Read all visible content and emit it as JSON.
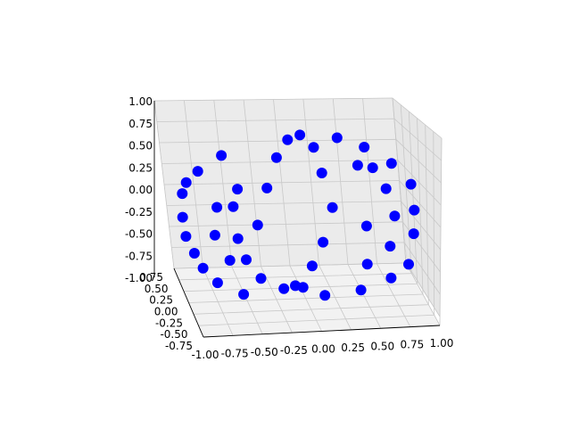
{
  "chart_data": {
    "type": "scatter",
    "projection": "3d",
    "title": "",
    "xlabel": "",
    "ylabel": "",
    "zlabel": "",
    "xlim": [
      -1.0,
      1.0
    ],
    "ylim": [
      -0.75,
      0.75
    ],
    "zlim": [
      -1.0,
      1.0
    ],
    "grid": true,
    "x_ticks": [
      "-1.00",
      "-0.75",
      "-0.50",
      "-0.25",
      "0.00",
      "0.25",
      "0.50",
      "0.75",
      "1.00"
    ],
    "y_ticks": [
      "-0.75",
      "-0.50",
      "-0.25",
      "0.00",
      "0.25",
      "0.50",
      "0.75"
    ],
    "z_ticks": [
      "-1.00",
      "-0.75",
      "-0.50",
      "-0.25",
      "0.00",
      "0.25",
      "0.50",
      "0.75",
      "1.00"
    ],
    "series": [
      {
        "color": "#0000ff",
        "marker": "o",
        "description_of_shape": "points on banded curves of a sphere of radius 1",
        "points": [
          [
            -0.96,
            -0.1,
            0.05
          ],
          [
            -0.94,
            -0.15,
            0.35
          ],
          [
            -0.9,
            -0.2,
            0.5
          ],
          [
            -0.8,
            -0.25,
            0.65
          ],
          [
            -0.6,
            -0.25,
            0.82
          ],
          [
            -0.95,
            -0.05,
            -0.2
          ],
          [
            -0.9,
            -0.05,
            -0.4
          ],
          [
            -0.85,
            -0.1,
            -0.55
          ],
          [
            -0.75,
            -0.15,
            -0.7
          ],
          [
            -0.55,
            -0.2,
            -0.82
          ],
          [
            -0.65,
            0.1,
            0.05
          ],
          [
            -0.7,
            0.05,
            -0.25
          ],
          [
            -0.6,
            0.05,
            -0.55
          ],
          [
            -0.35,
            0.1,
            -0.8
          ],
          [
            -0.15,
            0.2,
            -0.98
          ],
          [
            -0.05,
            0.2,
            -0.95
          ],
          [
            -0.35,
            -0.05,
            -0.1
          ],
          [
            -0.25,
            -0.1,
            0.35
          ],
          [
            -0.15,
            -0.1,
            0.7
          ],
          [
            -0.05,
            -0.1,
            0.9
          ],
          [
            0.05,
            -0.1,
            0.95
          ],
          [
            0.15,
            -0.1,
            0.8
          ],
          [
            0.2,
            -0.1,
            0.5
          ],
          [
            0.3,
            0.1,
            0.0
          ],
          [
            0.2,
            0.1,
            -0.4
          ],
          [
            0.1,
            0.15,
            -0.7
          ],
          [
            0.0,
            0.1,
            -0.92
          ],
          [
            0.15,
            -0.1,
            -0.92
          ],
          [
            0.45,
            -0.15,
            -0.85
          ],
          [
            0.7,
            -0.2,
            -0.7
          ],
          [
            0.85,
            -0.2,
            -0.55
          ],
          [
            0.9,
            -0.2,
            -0.2
          ],
          [
            0.92,
            -0.15,
            0.05
          ],
          [
            0.9,
            -0.15,
            0.35
          ],
          [
            0.75,
            -0.15,
            0.6
          ],
          [
            0.55,
            -0.1,
            0.78
          ],
          [
            0.35,
            -0.05,
            0.88
          ],
          [
            0.65,
            0.1,
            0.45
          ],
          [
            0.75,
            0.1,
            0.2
          ],
          [
            0.8,
            0.05,
            -0.1
          ],
          [
            0.75,
            0.05,
            -0.45
          ],
          [
            0.55,
            0.05,
            -0.65
          ],
          [
            0.6,
            0.25,
            -0.3
          ],
          [
            -0.5,
            -0.2,
            0.4
          ],
          [
            -0.55,
            -0.2,
            0.2
          ],
          [
            -0.5,
            0.15,
            -0.35
          ],
          [
            -0.45,
            0.15,
            -0.6
          ],
          [
            0.5,
            -0.05,
            0.55
          ]
        ]
      }
    ]
  }
}
